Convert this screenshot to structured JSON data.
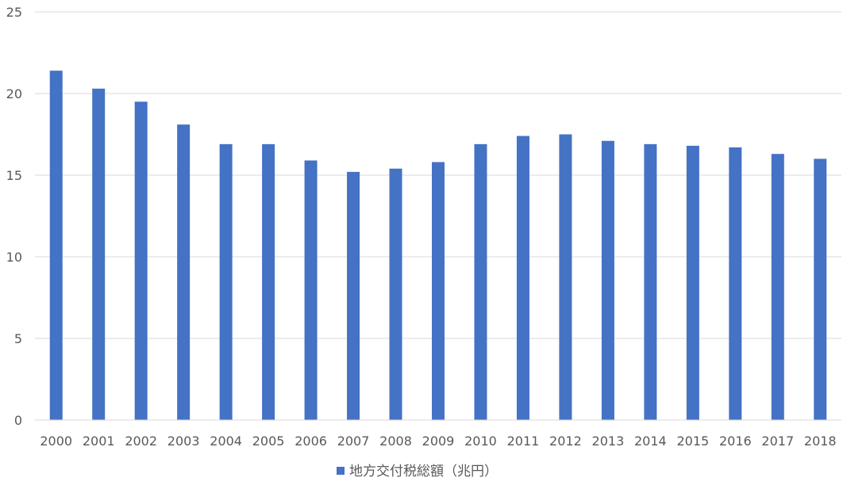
{
  "chart_data": {
    "type": "bar",
    "title": "",
    "xlabel": "",
    "ylabel": "",
    "categories": [
      "2000",
      "2001",
      "2002",
      "2003",
      "2004",
      "2005",
      "2006",
      "2007",
      "2008",
      "2009",
      "2010",
      "2011",
      "2012",
      "2013",
      "2014",
      "2015",
      "2016",
      "2017",
      "2018"
    ],
    "series": [
      {
        "name": "地方交付税総額（兆円）",
        "color": "#4472c4",
        "values": [
          21.4,
          20.3,
          19.5,
          18.1,
          16.9,
          16.9,
          15.9,
          15.2,
          15.4,
          15.8,
          16.9,
          17.4,
          17.5,
          17.1,
          16.9,
          16.8,
          16.7,
          16.3,
          16.0
        ]
      }
    ],
    "ylim": [
      0,
      25
    ],
    "yticks": [
      "0",
      "5",
      "10",
      "15",
      "20",
      "25"
    ],
    "grid": true,
    "legend_position": "bottom"
  }
}
